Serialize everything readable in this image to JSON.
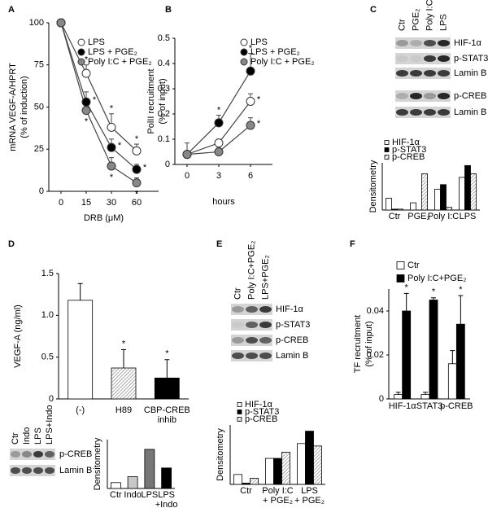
{
  "panel_labels": [
    "A",
    "B",
    "C",
    "D",
    "E",
    "F"
  ],
  "chart_data": [
    {
      "type": "line",
      "ylabel": [
        "mRNA VEGF-A/HPRT",
        "(% of induction)"
      ],
      "xlabel": "DRB (μM)",
      "categories": [
        "0",
        "15",
        "30",
        "60"
      ],
      "ylim": [
        0,
        100
      ],
      "yticks": [
        0,
        25,
        50,
        75,
        100
      ],
      "series": [
        {
          "name": "LPS",
          "color": "#ffffff",
          "values": [
            100,
            70,
            38,
            24
          ],
          "errors": [
            null,
            5,
            8,
            4
          ],
          "significance": [
            null,
            "*",
            "*",
            "*"
          ]
        },
        {
          "name": "LPS + PGE₂",
          "color": "#000000",
          "values": [
            100,
            53,
            26,
            13
          ],
          "errors": [
            null,
            6,
            5,
            3
          ],
          "significance": [
            null,
            "*",
            "*",
            "*"
          ]
        },
        {
          "name": "Poly I:C + PGE₂",
          "color": "#888888",
          "values": [
            100,
            48,
            15,
            5
          ],
          "errors": [
            null,
            6,
            5,
            3
          ],
          "significance": [
            null,
            "*",
            "*",
            "*"
          ]
        }
      ]
    },
    {
      "type": "line",
      "ylabel": [
        "PolII recruitment",
        "(% of input)"
      ],
      "xlabel": "hours",
      "categories": [
        "0",
        "3",
        "6"
      ],
      "ylim": [
        0,
        0.5
      ],
      "yticks": [
        0,
        0.1,
        0.2,
        0.3,
        0.4,
        0.5
      ],
      "series": [
        {
          "name": "LPS",
          "color": "#ffffff",
          "values": [
            0.04,
            0.085,
            0.25
          ],
          "errors": [
            0.045,
            0.015,
            0.03
          ],
          "significance": [
            null,
            null,
            "*"
          ]
        },
        {
          "name": "LPS + PGE₂",
          "color": "#000000",
          "values": [
            0.04,
            0.165,
            0.37
          ],
          "errors": [
            null,
            0.03,
            0.07
          ],
          "significance": [
            null,
            "*",
            "*"
          ]
        },
        {
          "name": "Poly I:C + PGE₂",
          "color": "#888888",
          "values": [
            0.04,
            0.05,
            0.155
          ],
          "errors": [
            null,
            0.02,
            0.03
          ],
          "significance": [
            null,
            null,
            "*"
          ]
        }
      ]
    },
    {
      "type": "bar",
      "ylabel": [
        "Densitometry"
      ],
      "categories": [
        "Ctr",
        "PGE₂",
        "Poly I:C",
        "LPS"
      ],
      "ylim": [
        0,
        2.6
      ],
      "series": [
        {
          "name": "HIF-1α",
          "color": "#ffffff",
          "hatch": false,
          "values": [
            0.65,
            0.4,
            1.15,
            1.8
          ]
        },
        {
          "name": "p-STAT3",
          "color": "#000000",
          "hatch": false,
          "values": [
            0.05,
            0,
            1.4,
            2.45
          ]
        },
        {
          "name": "p-CREB",
          "color": "#ffffff",
          "hatch": true,
          "values": [
            0.05,
            2.0,
            0.15,
            2.0
          ]
        }
      ]
    },
    {
      "type": "bar",
      "ylabel": [
        "VEGF-A (ng/ml)"
      ],
      "categories": [
        "(-)",
        "H89",
        "CBP-CREB inhib"
      ],
      "ylim": [
        0,
        1.5
      ],
      "yticks": [
        0,
        0.5,
        {
          "value": 1.0,
          "label": "1.0"
        },
        1.5
      ],
      "values": [
        1.18,
        0.37,
        0.25
      ],
      "errors": [
        0.2,
        0.22,
        0.22
      ],
      "significance": [
        null,
        "*",
        "*"
      ],
      "colors": [
        "#ffffff",
        "#ffffff",
        "#000000"
      ],
      "hatch": [
        false,
        true,
        false
      ]
    },
    {
      "type": "bar",
      "ylabel": [
        "Densitometry"
      ],
      "categories": [
        "Ctr",
        "Indo",
        "LPS",
        "LPS +Indo"
      ],
      "ylim": [
        0,
        2.5
      ],
      "values": [
        0.3,
        0.6,
        2.0,
        1.05
      ],
      "colors": [
        "#ffffff",
        "#c8c8c8",
        "#777777",
        "#000000"
      ],
      "hatch": [
        false,
        false,
        false,
        false
      ]
    },
    {
      "type": "bar",
      "ylabel": [
        "Densitometry"
      ],
      "categories": [
        "Ctr",
        "Poly I:C + PGE₂",
        "LPS + PGE₂"
      ],
      "ylim": [
        0,
        2.4
      ],
      "series": [
        {
          "name": "HIF-1α",
          "color": "#ffffff",
          "hatch": false,
          "values": [
            0.4,
            1.05,
            1.65
          ]
        },
        {
          "name": "p-STAT3",
          "color": "#000000",
          "hatch": false,
          "values": [
            0.05,
            1.05,
            2.15
          ]
        },
        {
          "name": "p-CREB",
          "color": "#ffffff",
          "hatch": true,
          "values": [
            0.25,
            1.3,
            1.55
          ]
        }
      ]
    },
    {
      "type": "bar",
      "ylabel": [
        "TF recruitment",
        "(% of input)"
      ],
      "categories": [
        "HIF-1α",
        "STAT3",
        "p-CREB"
      ],
      "ylim": [
        0,
        0.05
      ],
      "yticks": [
        0,
        0.02,
        0.04
      ],
      "series": [
        {
          "name": "Ctr",
          "color": "#ffffff",
          "hatch": false,
          "values": [
            0.002,
            0.002,
            0.016
          ],
          "errors": [
            0.001,
            0.001,
            0.006
          ],
          "significance": [
            null,
            null,
            null
          ]
        },
        {
          "name": "Poly I:C+PGE₂",
          "color": "#000000",
          "hatch": false,
          "values": [
            0.04,
            0.045,
            0.034
          ],
          "errors": [
            0.008,
            0.001,
            0.013
          ],
          "significance": [
            "*",
            "*",
            "*"
          ]
        }
      ]
    }
  ],
  "blots": [
    {
      "lanes": [
        "Ctr",
        "PGE₂",
        "Poly I:C",
        "LPS"
      ],
      "bands": [
        "HIF-1α",
        "p-STAT3",
        "Lamin B",
        "p-CREB",
        "Lamin B"
      ]
    },
    {
      "lanes": [
        "Ctr",
        "Indo",
        "LPS",
        "LPS+Indo"
      ],
      "bands": [
        "p-CREB",
        "Lamin B"
      ]
    },
    {
      "lanes": [
        "Ctr",
        "Poly I:C+PGE₂",
        "LPS+PGE₂"
      ],
      "bands": [
        "HIF-1α",
        "p-STAT3",
        "p-CREB",
        "Lamin B"
      ]
    }
  ]
}
